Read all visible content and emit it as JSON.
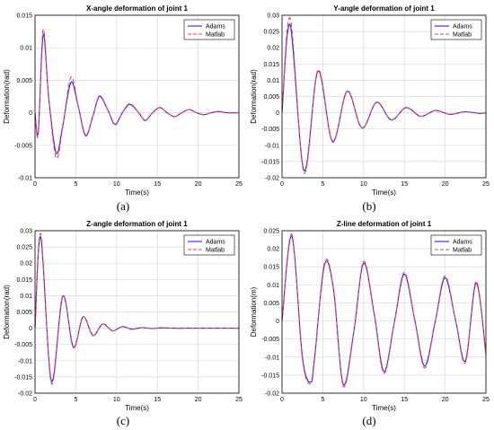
{
  "figure": {
    "captions": [
      "(a)",
      "(b)",
      "(c)",
      "(d)"
    ]
  },
  "colors": {
    "adams": "#1f1fff",
    "matlab": "#ff3c3c",
    "grid": "#d9d9d9",
    "axis": "#000000"
  },
  "chart_data": [
    {
      "type": "line",
      "title": "X-angle deformation of joint 1",
      "xlabel": "Time(s)",
      "ylabel": "Deformation(rad)",
      "xlim": [
        0,
        25
      ],
      "ylim": [
        -0.01,
        0.015
      ],
      "xticks": [
        0,
        5,
        10,
        15,
        20,
        25
      ],
      "yticks": [
        -0.01,
        -0.005,
        0,
        0.005,
        0.01,
        0.015
      ],
      "ytick_labels": [
        "-0.01",
        "-0.005",
        "0",
        "0.005",
        "0.01",
        "0.015"
      ],
      "grid": true,
      "legend": "top-right",
      "series": [
        {
          "name": "Adams",
          "x": [
            0,
            0.4,
            1.0,
            1.7,
            2.6,
            3.4,
            4.4,
            5.3,
            6.2,
            7.1,
            7.9,
            8.9,
            9.8,
            10.7,
            11.6,
            12.6,
            13.5,
            14.4,
            15.3,
            16.2,
            17.1,
            18.0,
            18.9,
            19.8,
            20.7,
            21.6,
            22.5,
            23.5,
            25
          ],
          "y": [
            0,
            -0.003,
            0.012,
            0.002,
            -0.0062,
            -0.002,
            0.0047,
            0.001,
            -0.0035,
            -0.0005,
            0.0025,
            0.0005,
            -0.0018,
            0,
            0.0013,
            0.0002,
            -0.0012,
            0,
            0.0008,
            0,
            -0.0006,
            0,
            0.0005,
            0,
            -0.0003,
            0,
            0.0002,
            0,
            0
          ]
        },
        {
          "name": "Matlab",
          "x": [
            0,
            0.4,
            1.0,
            1.7,
            2.6,
            3.4,
            4.4,
            5.3,
            6.2,
            7.1,
            7.9,
            8.9,
            9.8,
            10.7,
            11.6,
            12.6,
            13.5,
            14.4,
            15.3,
            16.2,
            17.1,
            18.0,
            18.9,
            19.8,
            20.7,
            21.6,
            22.5,
            23.5,
            25
          ],
          "y": [
            0,
            -0.0033,
            0.0128,
            0.002,
            -0.007,
            -0.0022,
            0.0055,
            0.001,
            -0.0036,
            -0.0005,
            0.0026,
            0.0005,
            -0.0019,
            0,
            0.0014,
            0.0002,
            -0.0012,
            0,
            0.0008,
            0,
            -0.0006,
            0,
            0.0005,
            0,
            -0.0003,
            0,
            0.0002,
            0,
            0
          ]
        }
      ]
    },
    {
      "type": "line",
      "title": "Y-angle deformation of joint 1",
      "xlabel": "Time(s)",
      "ylabel": "Deformation(rad)",
      "xlim": [
        0,
        25
      ],
      "ylim": [
        -0.02,
        0.03
      ],
      "xticks": [
        0,
        5,
        10,
        15,
        20,
        25
      ],
      "yticks": [
        -0.02,
        -0.015,
        -0.01,
        -0.005,
        0,
        0.005,
        0.01,
        0.015,
        0.02,
        0.025,
        0.03
      ],
      "ytick_labels": [
        "-0.02",
        "-0.015",
        "-0.01",
        "-0.005",
        "0",
        "0.005",
        "0.01",
        "0.015",
        "0.02",
        "0.025",
        "0.03"
      ],
      "grid": true,
      "legend": "top-right",
      "series": [
        {
          "name": "Adams",
          "x": [
            0,
            1.0,
            2.7,
            4.4,
            6.2,
            8.0,
            9.8,
            11.6,
            13.4,
            15.2,
            17.0,
            18.8,
            20.6,
            22.4,
            24.2,
            25
          ],
          "y": [
            0,
            0.027,
            -0.0178,
            0.0128,
            -0.0088,
            0.0066,
            -0.0047,
            0.0032,
            -0.0022,
            0.0016,
            -0.0011,
            0.0007,
            -0.0005,
            0.0003,
            -0.0002,
            0
          ]
        },
        {
          "name": "Matlab",
          "x": [
            0,
            1.0,
            2.7,
            4.4,
            6.2,
            8.0,
            9.8,
            11.6,
            13.4,
            15.2,
            17.0,
            18.8,
            20.6,
            22.4,
            24.2,
            25
          ],
          "y": [
            0,
            0.029,
            -0.0185,
            0.0132,
            -0.009,
            0.0068,
            -0.0047,
            0.0033,
            -0.0022,
            0.0016,
            -0.0011,
            0.0007,
            -0.0005,
            0.0003,
            -0.0002,
            0
          ]
        }
      ]
    },
    {
      "type": "line",
      "title": "Z-angle deformation of joint 1",
      "xlabel": "Time(s)",
      "ylabel": "Deformation(rad)",
      "xlim": [
        0,
        25
      ],
      "ylim": [
        -0.02,
        0.03
      ],
      "xticks": [
        0,
        5,
        10,
        15,
        20,
        25
      ],
      "yticks": [
        -0.02,
        -0.015,
        -0.01,
        -0.005,
        0,
        0.005,
        0.01,
        0.015,
        0.02,
        0.025,
        0.03
      ],
      "ytick_labels": [
        "-0.02",
        "-0.015",
        "-0.01",
        "-0.005",
        "0",
        "0.005",
        "0.01",
        "0.015",
        "0.02",
        "0.025",
        "0.03"
      ],
      "grid": true,
      "legend": "top-right",
      "series": [
        {
          "name": "Adams",
          "x": [
            0,
            0.7,
            2.0,
            3.4,
            4.7,
            5.9,
            7.1,
            8.3,
            9.5,
            10.7,
            11.9,
            13.1,
            14.3,
            15.5,
            17,
            19,
            25
          ],
          "y": [
            0,
            0.028,
            -0.0162,
            0.0098,
            -0.0058,
            0.0035,
            -0.0022,
            0.0013,
            -0.0008,
            0.0005,
            -0.0003,
            0.0002,
            -0.0001,
            0.0001,
            0,
            0,
            0
          ]
        },
        {
          "name": "Matlab",
          "x": [
            0,
            0.7,
            2.0,
            3.4,
            4.7,
            5.9,
            7.1,
            8.3,
            9.5,
            10.7,
            11.9,
            13.1,
            14.3,
            15.5,
            17,
            19,
            25
          ],
          "y": [
            0,
            0.029,
            -0.017,
            0.01,
            -0.006,
            0.0035,
            -0.0022,
            0.0013,
            -0.0008,
            0.0005,
            -0.0003,
            0.0002,
            -0.0001,
            0.0001,
            0,
            0,
            0
          ]
        }
      ]
    },
    {
      "type": "line",
      "title": "Z-line deformation of joint 1",
      "xlabel": "Time(s)",
      "ylabel": "Deformation(m)",
      "xlim": [
        0,
        25
      ],
      "ylim": [
        -0.02,
        0.025
      ],
      "xticks": [
        0,
        5,
        10,
        15,
        20,
        25
      ],
      "yticks": [
        -0.02,
        -0.015,
        -0.01,
        -0.005,
        0,
        0.005,
        0.01,
        0.015,
        0.02,
        0.025
      ],
      "ytick_labels": [
        "-0.02",
        "-0.015",
        "-0.01",
        "-0.005",
        "0",
        "0.005",
        "0.01",
        "0.015",
        "0.02",
        "0.025"
      ],
      "grid": true,
      "legend": "top-right",
      "series": [
        {
          "name": "Adams",
          "x": [
            0,
            1.2,
            2.5,
            3.5,
            4.0,
            5.2,
            6.3,
            7.5,
            8.8,
            10.0,
            11.3,
            12.5,
            13.8,
            15.0,
            16.3,
            17.5,
            18.8,
            20.0,
            21.3,
            22.5,
            23.8,
            25
          ],
          "y": [
            0,
            0.0235,
            -0.01,
            -0.017,
            -0.01,
            0.0155,
            0.009,
            -0.0175,
            -0.003,
            0.016,
            0.002,
            -0.014,
            0,
            0.013,
            0,
            -0.0125,
            0,
            0.012,
            0,
            -0.011,
            0.0105,
            -0.009
          ]
        },
        {
          "name": "Matlab",
          "x": [
            0,
            1.2,
            2.5,
            3.5,
            4.0,
            5.2,
            6.3,
            7.5,
            8.8,
            10.0,
            11.3,
            12.5,
            13.8,
            15.0,
            16.3,
            17.5,
            18.8,
            20.0,
            21.3,
            22.5,
            23.8,
            25
          ],
          "y": [
            0,
            0.024,
            -0.0105,
            -0.0175,
            -0.0105,
            0.016,
            0.0092,
            -0.018,
            -0.0032,
            0.0165,
            0.002,
            -0.0145,
            0,
            0.0135,
            0,
            -0.013,
            0,
            0.0125,
            0,
            -0.0115,
            0.011,
            -0.0095
          ]
        }
      ]
    }
  ]
}
